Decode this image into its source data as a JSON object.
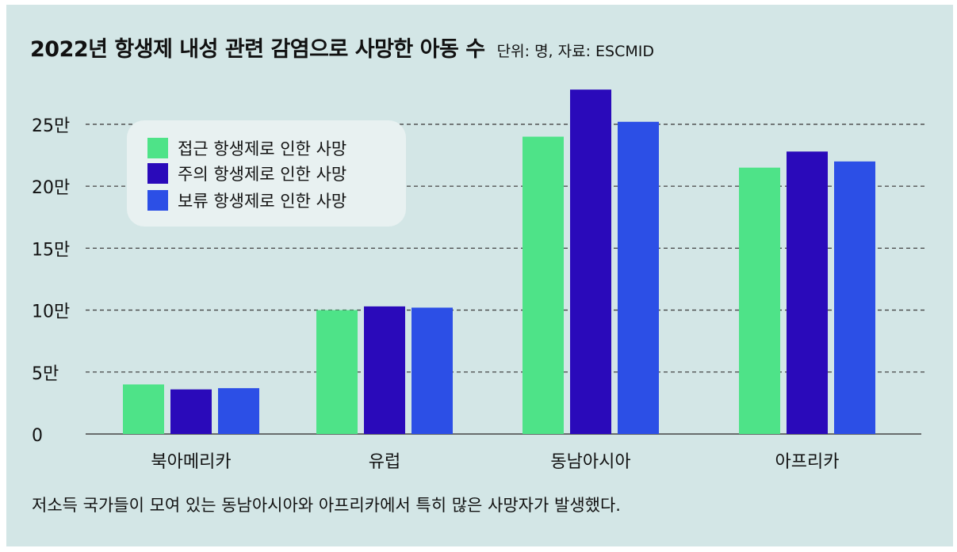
{
  "chart_data": {
    "type": "bar",
    "title": "2022년 항생제 내성 관련 감염으로 사망한 아동 수",
    "subtitle": "단위: 명, 자료: ESCMID",
    "categories": [
      "북아메리카",
      "유럽",
      "동남아시아",
      "아프리카"
    ],
    "series": [
      {
        "name": "접근 항생제로 인한 사망",
        "color": "#4ee388",
        "values": [
          40000,
          100000,
          240000,
          215000
        ]
      },
      {
        "name": "주의 항생제로 인한 사망",
        "color": "#2a0aba",
        "values": [
          36000,
          103000,
          278000,
          228000
        ]
      },
      {
        "name": "보류 항생제로 인한 사망",
        "color": "#2c4fe6",
        "values": [
          37000,
          102000,
          252000,
          220000
        ]
      }
    ],
    "yticks": [
      {
        "value": 0,
        "label": "0"
      },
      {
        "value": 50000,
        "label": "5만"
      },
      {
        "value": 100000,
        "label": "10만"
      },
      {
        "value": 150000,
        "label": "15만"
      },
      {
        "value": 200000,
        "label": "20만"
      },
      {
        "value": 250000,
        "label": "25만"
      }
    ],
    "ylim": [
      0,
      280000
    ],
    "grid": true,
    "legend_position": "top-left"
  },
  "caption": "저소득 국가들이 모여 있는 동남아시아와 아프리카에서 특히 많은 사망자가 발생했다."
}
